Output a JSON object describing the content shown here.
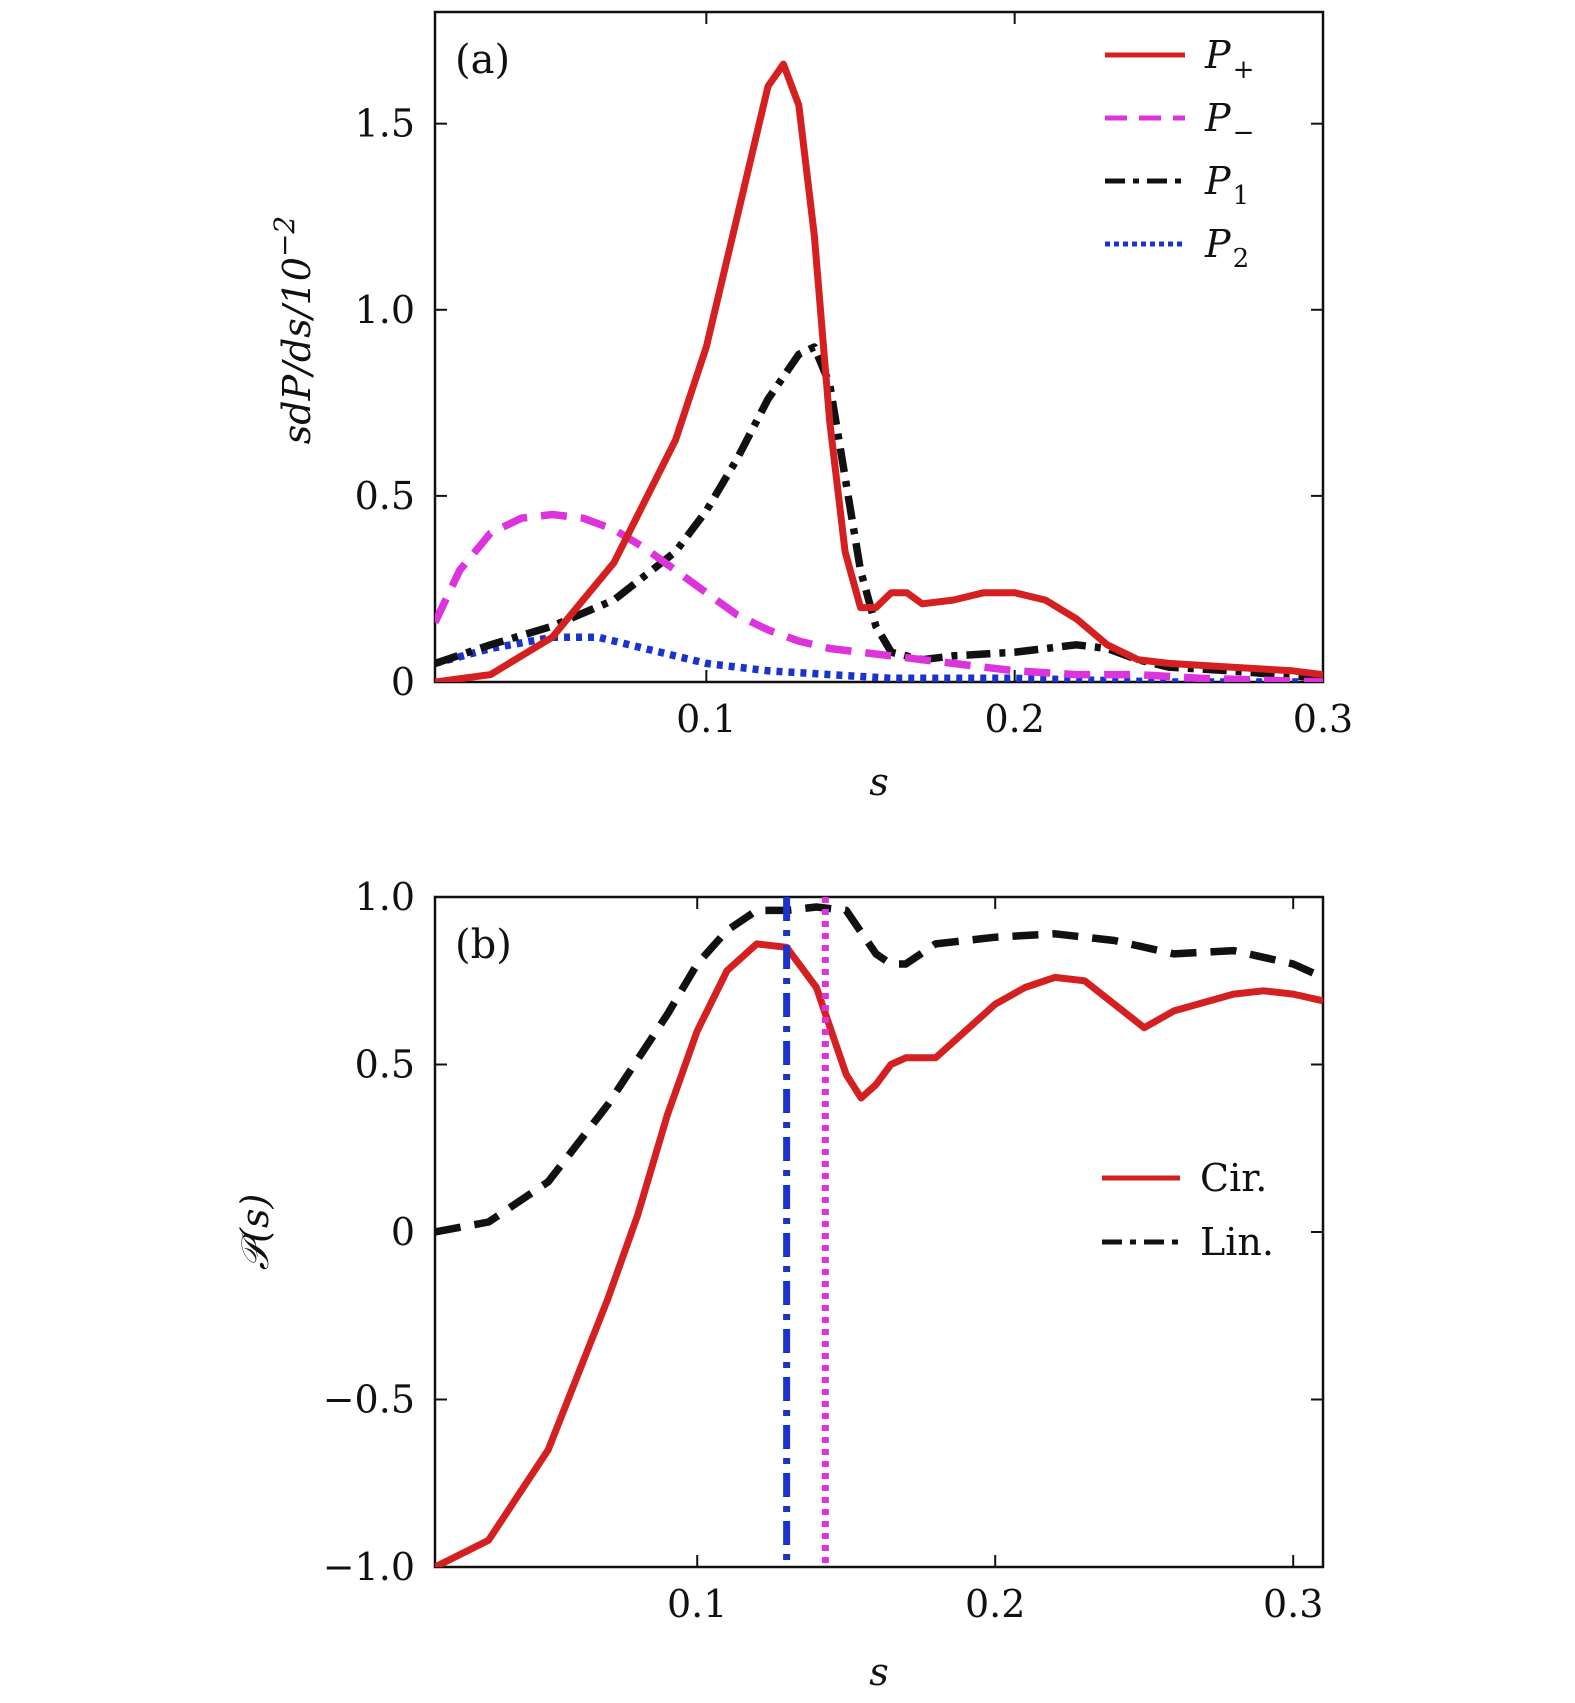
{
  "chart_data": [
    {
      "type": "line",
      "panel_label": "(a)",
      "xlabel": "s",
      "ylabel": "sdP/ds/10",
      "ylabel_exponent": "−2",
      "xlim": [
        0.012,
        0.3
      ],
      "ylim": [
        0,
        1.8
      ],
      "xticks": [
        0.1,
        0.2,
        0.3
      ],
      "xtick_labels": [
        "0.1",
        "0.2",
        "0.3"
      ],
      "yticks": [
        0,
        0.5,
        1.0,
        1.5
      ],
      "ytick_labels": [
        "0",
        "0.5",
        "1.0",
        "1.5"
      ],
      "legend_position": "top-right",
      "series": [
        {
          "name": "P+",
          "name_main": "P",
          "name_sub": "+",
          "color": "#d42020",
          "dash": "solid",
          "x": [
            0.012,
            0.03,
            0.05,
            0.07,
            0.09,
            0.1,
            0.11,
            0.12,
            0.125,
            0.13,
            0.135,
            0.14,
            0.145,
            0.15,
            0.155,
            0.16,
            0.165,
            0.17,
            0.18,
            0.19,
            0.2,
            0.21,
            0.22,
            0.23,
            0.24,
            0.25,
            0.27,
            0.29,
            0.3
          ],
          "y": [
            0.0,
            0.02,
            0.12,
            0.32,
            0.65,
            0.9,
            1.25,
            1.6,
            1.66,
            1.55,
            1.2,
            0.7,
            0.35,
            0.2,
            0.2,
            0.24,
            0.24,
            0.21,
            0.22,
            0.24,
            0.24,
            0.22,
            0.17,
            0.1,
            0.06,
            0.05,
            0.04,
            0.03,
            0.02
          ]
        },
        {
          "name": "P−",
          "name_main": "P",
          "name_sub": "−",
          "color": "#dd33dd",
          "dash": "dashed",
          "x": [
            0.012,
            0.02,
            0.03,
            0.04,
            0.05,
            0.06,
            0.07,
            0.08,
            0.09,
            0.1,
            0.11,
            0.12,
            0.13,
            0.14,
            0.15,
            0.16,
            0.17,
            0.18,
            0.2,
            0.22,
            0.24,
            0.26,
            0.3
          ],
          "y": [
            0.16,
            0.3,
            0.4,
            0.44,
            0.45,
            0.44,
            0.41,
            0.36,
            0.3,
            0.24,
            0.18,
            0.14,
            0.11,
            0.09,
            0.08,
            0.07,
            0.06,
            0.05,
            0.03,
            0.02,
            0.02,
            0.01,
            0.0
          ]
        },
        {
          "name": "P1",
          "name_main": "P",
          "name_sub": "1",
          "color": "#111111",
          "dash": "dashdot",
          "x": [
            0.012,
            0.03,
            0.05,
            0.07,
            0.09,
            0.1,
            0.11,
            0.12,
            0.13,
            0.135,
            0.14,
            0.145,
            0.15,
            0.155,
            0.16,
            0.17,
            0.18,
            0.2,
            0.22,
            0.23,
            0.24,
            0.25,
            0.27,
            0.3
          ],
          "y": [
            0.05,
            0.1,
            0.15,
            0.22,
            0.35,
            0.46,
            0.6,
            0.76,
            0.88,
            0.9,
            0.8,
            0.55,
            0.3,
            0.15,
            0.08,
            0.06,
            0.07,
            0.08,
            0.1,
            0.09,
            0.06,
            0.04,
            0.03,
            0.01
          ]
        },
        {
          "name": "P2",
          "name_main": "P",
          "name_sub": "2",
          "color": "#1a33cc",
          "dash": "dotted",
          "x": [
            0.012,
            0.03,
            0.05,
            0.065,
            0.08,
            0.1,
            0.12,
            0.14,
            0.16,
            0.2,
            0.25,
            0.3
          ],
          "y": [
            0.05,
            0.09,
            0.12,
            0.12,
            0.09,
            0.05,
            0.03,
            0.02,
            0.01,
            0.01,
            0.0,
            0.0
          ]
        }
      ]
    },
    {
      "type": "line",
      "panel_label": "(b)",
      "xlabel": "s",
      "ylabel": "𝒫(s)",
      "xlim": [
        0.012,
        0.31
      ],
      "ylim": [
        -1.0,
        1.0
      ],
      "xticks": [
        0.1,
        0.2,
        0.3
      ],
      "xtick_labels": [
        "0.1",
        "0.2",
        "0.3"
      ],
      "yticks": [
        -1.0,
        -0.5,
        0,
        0.5,
        1.0
      ],
      "ytick_labels": [
        "−1.0",
        "−0.5",
        "0",
        "0.5",
        "1.0"
      ],
      "legend_position": "center-right",
      "series": [
        {
          "name": "Cir.",
          "color": "#d42020",
          "dash": "solid",
          "x": [
            0.012,
            0.03,
            0.05,
            0.07,
            0.08,
            0.09,
            0.1,
            0.11,
            0.12,
            0.13,
            0.14,
            0.15,
            0.155,
            0.16,
            0.165,
            0.17,
            0.18,
            0.19,
            0.2,
            0.21,
            0.22,
            0.23,
            0.24,
            0.25,
            0.26,
            0.28,
            0.29,
            0.3,
            0.31
          ],
          "y": [
            -1.0,
            -0.92,
            -0.65,
            -0.2,
            0.05,
            0.35,
            0.6,
            0.78,
            0.86,
            0.85,
            0.73,
            0.47,
            0.4,
            0.44,
            0.5,
            0.52,
            0.52,
            0.6,
            0.68,
            0.73,
            0.76,
            0.75,
            0.68,
            0.61,
            0.66,
            0.71,
            0.72,
            0.71,
            0.69
          ]
        },
        {
          "name": "Lin.",
          "color": "#111111",
          "dash": "dashed",
          "x": [
            0.012,
            0.03,
            0.05,
            0.07,
            0.09,
            0.1,
            0.11,
            0.12,
            0.13,
            0.14,
            0.15,
            0.16,
            0.165,
            0.17,
            0.18,
            0.2,
            0.22,
            0.24,
            0.26,
            0.28,
            0.3,
            0.31
          ],
          "y": [
            0.0,
            0.03,
            0.15,
            0.38,
            0.65,
            0.8,
            0.9,
            0.96,
            0.96,
            0.97,
            0.96,
            0.83,
            0.8,
            0.8,
            0.86,
            0.88,
            0.89,
            0.87,
            0.83,
            0.84,
            0.8,
            0.76
          ]
        }
      ],
      "vertical_lines": [
        {
          "x": 0.13,
          "color": "#1a33cc",
          "dash": "dashdot"
        },
        {
          "x": 0.143,
          "color": "#dd33dd",
          "dash": "dotted"
        }
      ]
    }
  ]
}
